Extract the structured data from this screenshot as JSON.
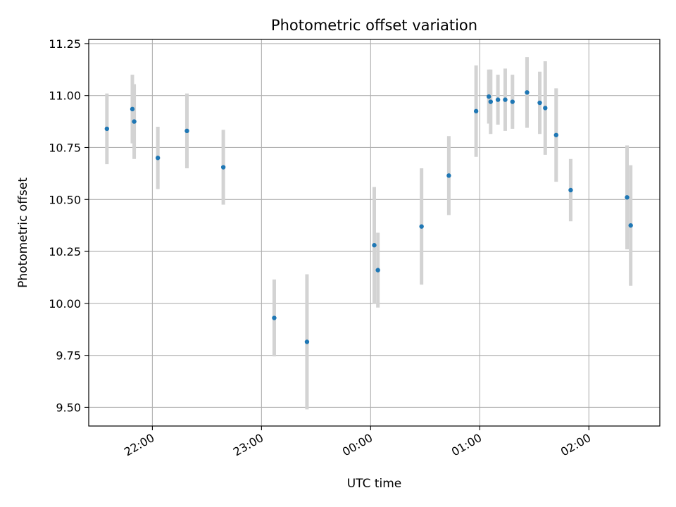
{
  "chart_data": {
    "type": "scatter",
    "title": "Photometric offset variation",
    "xlabel": "UTC time",
    "ylabel": "Photometric offset",
    "x_tick_labels": [
      "22:00",
      "23:00",
      "00:00",
      "01:00",
      "02:00"
    ],
    "x_tick_times": [
      "22:00",
      "23:00",
      "00:00",
      "01:00",
      "02:00"
    ],
    "y_tick_labels": [
      "9.50",
      "9.75",
      "10.00",
      "10.25",
      "10.50",
      "10.75",
      "11.00",
      "11.25"
    ],
    "y_ticks": [
      9.5,
      9.75,
      10.0,
      10.25,
      10.5,
      10.75,
      11.0,
      11.25
    ],
    "xlim": [
      "21:25",
      "02:39"
    ],
    "ylim": [
      9.41,
      11.27
    ],
    "grid": true,
    "point_color": "#1f77b4",
    "errorbar_color": "#d3d3d3",
    "points": [
      {
        "t": "21:35",
        "y": 10.84,
        "err": 0.17
      },
      {
        "t": "21:49",
        "y": 10.935,
        "err": 0.165
      },
      {
        "t": "21:50",
        "y": 10.875,
        "err": 0.18
      },
      {
        "t": "22:03",
        "y": 10.7,
        "err": 0.15
      },
      {
        "t": "22:19",
        "y": 10.83,
        "err": 0.18
      },
      {
        "t": "22:39",
        "y": 10.655,
        "err": 0.18
      },
      {
        "t": "23:07",
        "y": 9.93,
        "err": 0.185
      },
      {
        "t": "23:25",
        "y": 9.815,
        "err": 0.325
      },
      {
        "t": "00:02",
        "y": 10.28,
        "err": 0.28
      },
      {
        "t": "00:04",
        "y": 10.16,
        "err": 0.18
      },
      {
        "t": "00:28",
        "y": 10.37,
        "err": 0.28
      },
      {
        "t": "00:43",
        "y": 10.615,
        "err": 0.19
      },
      {
        "t": "00:58",
        "y": 10.925,
        "err": 0.22
      },
      {
        "t": "01:05",
        "y": 10.995,
        "err": 0.13
      },
      {
        "t": "01:06",
        "y": 10.97,
        "err": 0.155
      },
      {
        "t": "01:10",
        "y": 10.98,
        "err": 0.12
      },
      {
        "t": "01:14",
        "y": 10.98,
        "err": 0.15
      },
      {
        "t": "01:18",
        "y": 10.97,
        "err": 0.13
      },
      {
        "t": "01:26",
        "y": 11.015,
        "err": 0.17
      },
      {
        "t": "01:33",
        "y": 10.965,
        "err": 0.15
      },
      {
        "t": "01:36",
        "y": 10.94,
        "err": 0.225
      },
      {
        "t": "01:42",
        "y": 10.81,
        "err": 0.225
      },
      {
        "t": "01:50",
        "y": 10.545,
        "err": 0.15
      },
      {
        "t": "02:21",
        "y": 10.51,
        "err": 0.25
      },
      {
        "t": "02:23",
        "y": 10.375,
        "err": 0.29
      }
    ]
  }
}
